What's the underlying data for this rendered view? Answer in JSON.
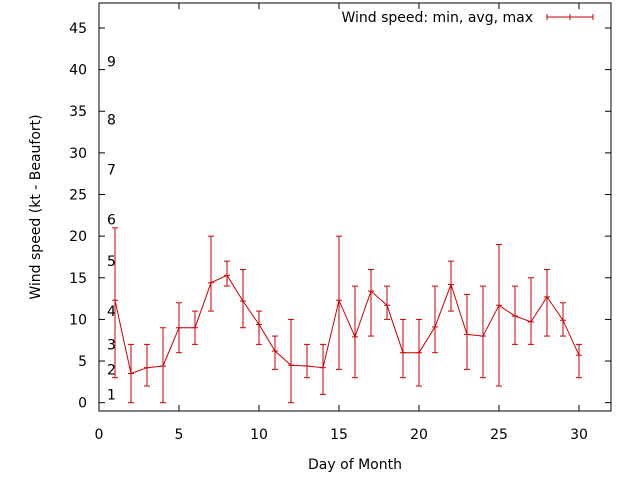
{
  "chart_data": {
    "type": "line",
    "title": "",
    "xlabel": "Day of Month",
    "ylabel": "Wind speed (kt - Beaufort)",
    "xlim": [
      0,
      32
    ],
    "ylim": [
      -1,
      48
    ],
    "x_ticks": [
      0,
      5,
      10,
      15,
      20,
      25,
      30
    ],
    "y_ticks": [
      0,
      5,
      10,
      15,
      20,
      25,
      30,
      35,
      40,
      45
    ],
    "grid": false,
    "legend_position": "top-right",
    "series": [
      {
        "name": "Wind speed: min, avg, max",
        "color": "#cc0000",
        "x": [
          1,
          2,
          3,
          4,
          5,
          6,
          7,
          8,
          9,
          10,
          11,
          12,
          13,
          14,
          15,
          16,
          17,
          18,
          19,
          20,
          21,
          22,
          23,
          24,
          25,
          26,
          27,
          28,
          29,
          30
        ],
        "avg": [
          12.3,
          3.5,
          4.2,
          4.4,
          9.0,
          9.0,
          14.4,
          15.3,
          12.2,
          9.4,
          6.2,
          4.5,
          4.4,
          4.2,
          12.3,
          7.9,
          13.4,
          11.7,
          6.0,
          6.0,
          9.1,
          14.2,
          8.2,
          8.0,
          11.7,
          10.4,
          9.7,
          12.7,
          9.9,
          5.7
        ],
        "min": [
          3,
          0,
          2,
          0,
          6,
          7,
          11,
          14,
          9,
          7,
          4,
          0,
          3,
          1,
          4,
          3,
          8,
          10,
          3,
          2,
          6,
          11,
          4,
          3,
          2,
          7,
          7,
          8,
          8,
          3
        ],
        "max": [
          21,
          7,
          7,
          9,
          12,
          11,
          20,
          17,
          16,
          11,
          8,
          10,
          7,
          7,
          20,
          14,
          16,
          14,
          10,
          10,
          14,
          17,
          13,
          14,
          19,
          14,
          15,
          16,
          12,
          7
        ]
      }
    ],
    "beaufort_labels": [
      {
        "label": "1",
        "y": 1
      },
      {
        "label": "2",
        "y": 4
      },
      {
        "label": "3",
        "y": 7
      },
      {
        "label": "4",
        "y": 11
      },
      {
        "label": "5",
        "y": 17
      },
      {
        "label": "6",
        "y": 22
      },
      {
        "label": "7",
        "y": 28
      },
      {
        "label": "8",
        "y": 34
      },
      {
        "label": "9",
        "y": 41
      }
    ]
  }
}
